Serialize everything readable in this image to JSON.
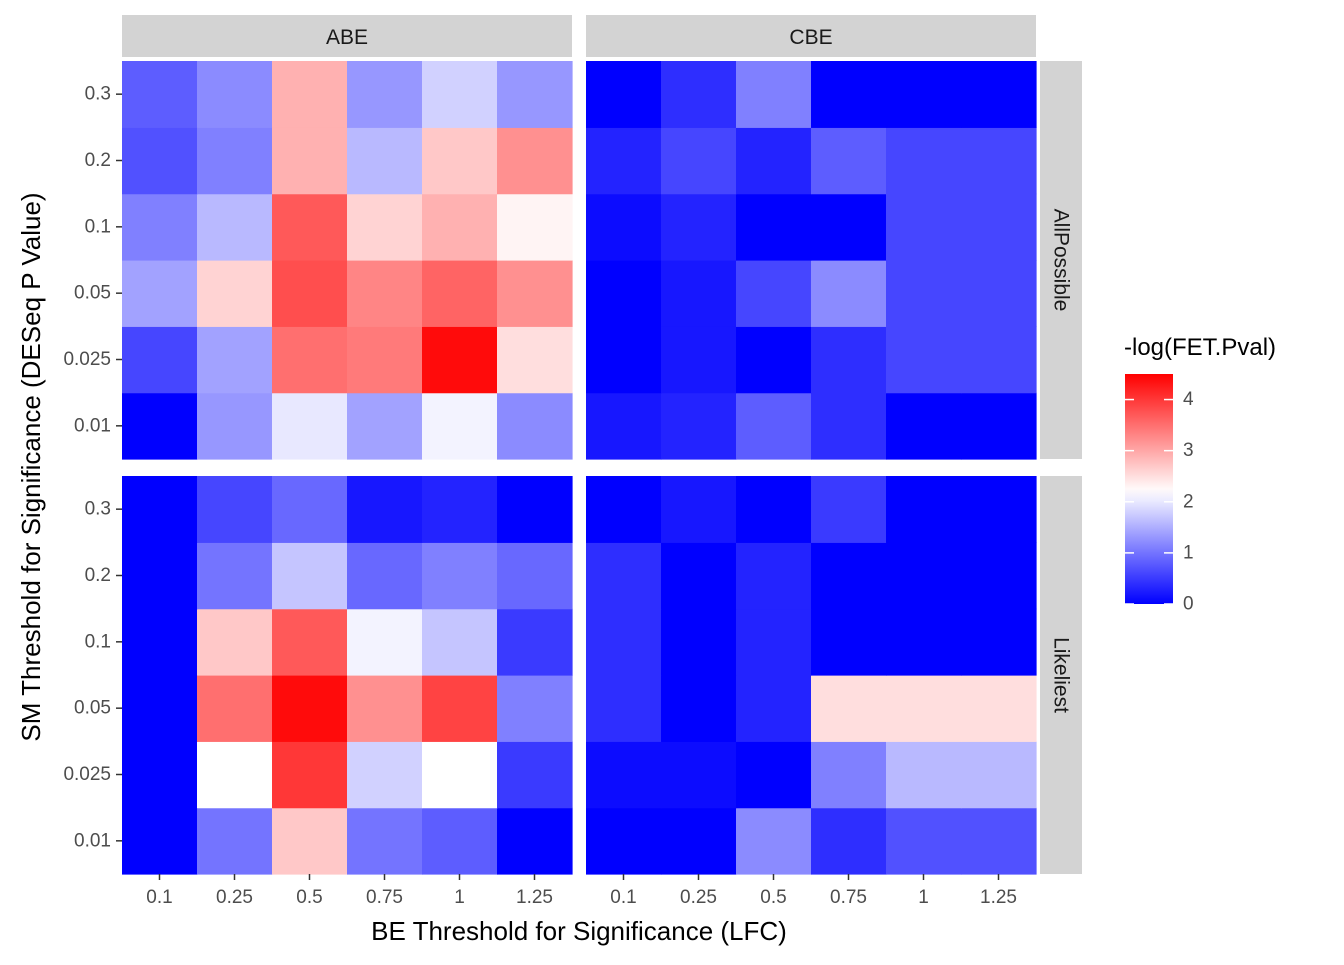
{
  "chart_data": {
    "type": "heatmap",
    "xlabel": "BE Threshold for Significance (LFC)",
    "ylabel": "SM Threshold for Significance (DESeq P Value)",
    "x_categories": [
      "0.1",
      "0.25",
      "0.5",
      "0.75",
      "1",
      "1.25"
    ],
    "y_categories": [
      "0.01",
      "0.025",
      "0.05",
      "0.1",
      "0.2",
      "0.3"
    ],
    "facet_columns": [
      "ABE",
      "CBE"
    ],
    "facet_rows": [
      "AllPossible",
      "Likeliest"
    ],
    "legend": {
      "title": "-log(FET.Pval)",
      "ticks": [
        "0",
        "1",
        "2",
        "3",
        "4"
      ],
      "tick_values": [
        0,
        1,
        2,
        3,
        4
      ],
      "min": 0,
      "max": 4.5,
      "midpoint": 2.2,
      "low_color": "#0000FF",
      "mid_color": "#FFFFFF",
      "high_color": "#FF0000",
      "position": "right"
    },
    "panel_background": "#EBEBEB",
    "strip_background": "#D3D3D3",
    "panels": [
      {
        "col": "ABE",
        "row": "AllPossible",
        "values": [
          [
            0.0,
            1.3,
            2.0,
            1.4,
            2.1,
            1.2
          ],
          [
            0.6,
            1.4,
            3.5,
            3.4,
            4.4,
            2.5
          ],
          [
            1.4,
            2.6,
            3.8,
            3.3,
            3.6,
            3.2
          ],
          [
            1.1,
            1.6,
            3.7,
            2.6,
            2.9,
            2.3
          ],
          [
            0.7,
            1.1,
            2.9,
            1.6,
            2.7,
            3.2
          ],
          [
            0.8,
            1.2,
            2.9,
            1.3,
            1.8,
            1.3
          ]
        ]
      },
      {
        "col": "CBE",
        "row": "AllPossible",
        "values": [
          [
            0.2,
            0.3,
            0.8,
            0.4,
            0.0,
            0.0
          ],
          [
            0.0,
            0.2,
            0.0,
            0.4,
            0.6,
            0.6
          ],
          [
            0.0,
            0.2,
            0.6,
            1.2,
            0.6,
            0.6
          ],
          [
            0.1,
            0.3,
            0.0,
            0.0,
            0.6,
            0.6
          ],
          [
            0.3,
            0.6,
            0.3,
            0.8,
            0.6,
            0.6
          ],
          [
            0.0,
            0.4,
            1.1,
            0.0,
            0.0,
            0.0
          ]
        ]
      },
      {
        "col": "ABE",
        "row": "Likeliest",
        "values": [
          [
            0.0,
            1.0,
            2.7,
            1.0,
            0.8,
            0.0
          ],
          [
            0.0,
            2.2,
            4.0,
            1.8,
            2.2,
            0.5
          ],
          [
            0.0,
            3.5,
            4.4,
            3.2,
            3.9,
            1.1
          ],
          [
            0.0,
            2.7,
            3.7,
            2.1,
            1.7,
            0.5
          ],
          [
            0.0,
            1.0,
            1.7,
            0.9,
            1.1,
            0.9
          ],
          [
            0.0,
            0.6,
            0.9,
            0.2,
            0.3,
            0.0
          ]
        ]
      },
      {
        "col": "CBE",
        "row": "Likeliest",
        "values": [
          [
            0.0,
            0.0,
            1.2,
            0.4,
            0.7,
            0.7
          ],
          [
            0.1,
            0.1,
            0.0,
            1.1,
            1.6,
            1.6
          ],
          [
            0.4,
            0.0,
            0.3,
            2.5,
            2.5,
            2.5
          ],
          [
            0.4,
            0.0,
            0.3,
            0.0,
            0.0,
            0.0
          ],
          [
            0.4,
            0.0,
            0.3,
            0.0,
            0.0,
            0.0
          ],
          [
            0.0,
            0.2,
            0.0,
            0.5,
            0.0,
            0.0
          ]
        ]
      }
    ]
  }
}
